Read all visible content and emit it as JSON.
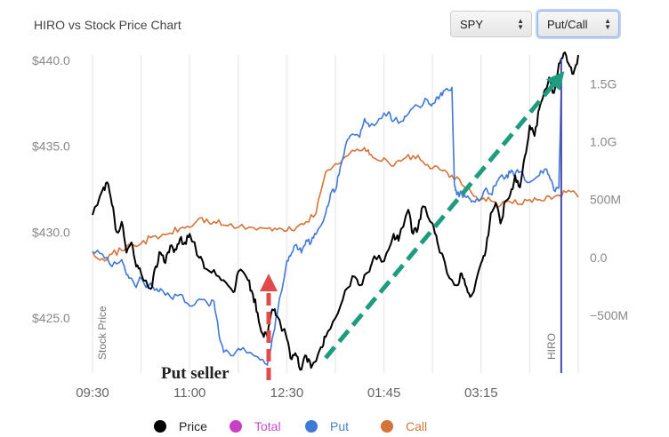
{
  "header": {
    "title": "HIRO vs Stock Price Chart",
    "ticker_value": "SPY",
    "mode_value": "Put/Call"
  },
  "legend": [
    {
      "label": "Price",
      "color": "#000000"
    },
    {
      "label": "Total",
      "color": "#c93fc4"
    },
    {
      "label": "Put",
      "color": "#3f79d6"
    },
    {
      "label": "Call",
      "color": "#d4743a"
    }
  ],
  "annotations": {
    "put_seller": "Put seller",
    "left_axis_title": "Stock Price",
    "right_axis_title": "HIRO"
  },
  "chart_data": {
    "type": "line",
    "x_ticks": [
      "09:30",
      "11:00",
      "12:30",
      "01:45",
      "03:15"
    ],
    "y_left_ticks": [
      "$440.0",
      "$435.0",
      "$430.0",
      "$425.0"
    ],
    "y_left_values": [
      440,
      435,
      430,
      425
    ],
    "y_left_range": [
      421.8,
      440.3
    ],
    "y_right_ticks": [
      "1.5G",
      "1.0G",
      "500M",
      "0.0",
      "−500M"
    ],
    "y_right_values": [
      1.5,
      1.0,
      0.5,
      0.0,
      -0.5
    ],
    "y_right_range": [
      -1.0,
      1.75
    ],
    "grid": "vertical",
    "series": [
      {
        "name": "Price",
        "axis": "left",
        "color": "#000000",
        "points": [
          [
            0,
            431.0
          ],
          [
            2,
            432.4
          ],
          [
            3,
            432.9
          ],
          [
            4,
            431.6
          ],
          [
            5,
            430.0
          ],
          [
            6,
            430.6
          ],
          [
            7,
            428.8
          ],
          [
            8,
            429.4
          ],
          [
            9,
            428.0
          ],
          [
            10,
            427.6
          ],
          [
            12,
            426.7
          ],
          [
            13,
            428.0
          ],
          [
            14,
            428.8
          ],
          [
            15,
            428.2
          ],
          [
            16,
            429.2
          ],
          [
            17,
            429.0
          ],
          [
            18,
            429.6
          ],
          [
            19,
            429.4
          ],
          [
            20,
            429.9
          ],
          [
            22,
            428.5
          ],
          [
            23,
            427.9
          ],
          [
            25,
            427.8
          ],
          [
            27,
            427.2
          ],
          [
            29,
            426.5
          ],
          [
            30,
            427.7
          ],
          [
            32,
            427.2
          ],
          [
            33,
            426.4
          ],
          [
            34,
            425.3
          ],
          [
            35,
            424.1
          ],
          [
            36,
            423.9
          ],
          [
            37,
            425.5
          ],
          [
            38,
            425.1
          ],
          [
            40,
            423.8
          ],
          [
            41,
            422.6
          ],
          [
            42,
            422.8
          ],
          [
            43,
            422.0
          ],
          [
            44,
            422.8
          ],
          [
            45,
            422.1
          ],
          [
            47,
            423.3
          ],
          [
            48,
            423.9
          ],
          [
            50,
            425.0
          ],
          [
            52,
            426.6
          ],
          [
            54,
            427.4
          ],
          [
            55,
            426.9
          ],
          [
            57,
            427.7
          ],
          [
            58,
            428.6
          ],
          [
            60,
            428.3
          ],
          [
            62,
            429.9
          ],
          [
            63,
            429.5
          ],
          [
            65,
            431.3
          ],
          [
            66,
            429.9
          ],
          [
            67,
            430.2
          ],
          [
            68,
            431.5
          ],
          [
            70,
            430.5
          ],
          [
            71,
            429.4
          ],
          [
            73,
            427.6
          ],
          [
            75,
            426.9
          ],
          [
            76,
            427.6
          ],
          [
            77,
            426.8
          ],
          [
            78,
            426.3
          ],
          [
            80,
            428.2
          ],
          [
            81,
            429.0
          ],
          [
            82,
            431.1
          ],
          [
            83,
            431.7
          ],
          [
            84,
            430.5
          ],
          [
            85,
            431.8
          ],
          [
            86,
            432.2
          ],
          [
            87,
            433.3
          ],
          [
            88,
            432.6
          ],
          [
            89,
            434.4
          ],
          [
            90,
            436.2
          ],
          [
            91,
            435.6
          ],
          [
            92,
            437.2
          ],
          [
            93,
            438.2
          ],
          [
            94,
            439.0
          ],
          [
            95,
            438.1
          ],
          [
            96,
            439.8
          ],
          [
            97,
            440.4
          ],
          [
            98,
            439.8
          ],
          [
            99,
            439.2
          ],
          [
            100,
            440.3
          ]
        ]
      },
      {
        "name": "Put",
        "axis": "right",
        "color": "#3f79d6",
        "points": [
          [
            0,
            0.05
          ],
          [
            2,
            0.03
          ],
          [
            4,
            -0.08
          ],
          [
            6,
            -0.02
          ],
          [
            7,
            -0.15
          ],
          [
            8,
            -0.18
          ],
          [
            9,
            -0.26
          ],
          [
            10,
            -0.18
          ],
          [
            11,
            -0.26
          ],
          [
            12,
            -0.22
          ],
          [
            13,
            -0.28
          ],
          [
            14,
            -0.27
          ],
          [
            16,
            -0.34
          ],
          [
            18,
            -0.32
          ],
          [
            20,
            -0.42
          ],
          [
            22,
            -0.36
          ],
          [
            24,
            -0.42
          ],
          [
            25,
            -0.38
          ],
          [
            26,
            -0.66
          ],
          [
            27,
            -0.82
          ],
          [
            29,
            -0.85
          ],
          [
            31,
            -0.78
          ],
          [
            34,
            -0.86
          ],
          [
            36,
            -0.93
          ],
          [
            37,
            -0.7
          ],
          [
            38,
            -0.5
          ],
          [
            40,
            -0.03
          ],
          [
            41,
            0.04
          ],
          [
            42,
            0.11
          ],
          [
            43,
            0.04
          ],
          [
            44,
            0.15
          ],
          [
            45,
            0.13
          ],
          [
            46,
            0.2
          ],
          [
            48,
            0.38
          ],
          [
            49,
            0.55
          ],
          [
            50,
            0.58
          ],
          [
            51,
            0.78
          ],
          [
            52,
            0.95
          ],
          [
            53,
            1.05
          ],
          [
            55,
            1.04
          ],
          [
            56,
            1.2
          ],
          [
            57,
            1.13
          ],
          [
            59,
            1.2
          ],
          [
            61,
            1.26
          ],
          [
            62,
            1.18
          ],
          [
            64,
            1.18
          ],
          [
            65,
            1.24
          ],
          [
            67,
            1.31
          ],
          [
            69,
            1.36
          ],
          [
            70,
            1.33
          ],
          [
            71,
            1.39
          ],
          [
            72,
            1.4
          ],
          [
            73,
            1.46
          ],
          [
            74,
            1.47
          ],
          [
            74.5,
            0.62
          ],
          [
            75,
            0.54
          ],
          [
            76,
            0.55
          ],
          [
            77,
            0.52
          ],
          [
            78,
            0.48
          ],
          [
            79,
            0.5
          ],
          [
            80,
            0.51
          ],
          [
            81,
            0.6
          ],
          [
            82,
            0.55
          ],
          [
            83,
            0.62
          ],
          [
            84,
            0.7
          ],
          [
            85,
            0.69
          ],
          [
            86,
            0.73
          ],
          [
            87,
            0.72
          ],
          [
            88,
            0.74
          ],
          [
            90,
            0.65
          ],
          [
            92,
            0.71
          ],
          [
            93,
            0.76
          ],
          [
            94,
            0.71
          ],
          [
            95,
            0.58
          ],
          [
            96,
            0.6
          ],
          [
            96.5,
            1.45
          ]
        ]
      },
      {
        "name": "Call",
        "axis": "right",
        "color": "#d4743a",
        "points": [
          [
            0,
            0.05
          ],
          [
            2,
            -0.01
          ],
          [
            4,
            0.03
          ],
          [
            6,
            0.06
          ],
          [
            8,
            0.11
          ],
          [
            10,
            0.12
          ],
          [
            12,
            0.17
          ],
          [
            14,
            0.18
          ],
          [
            16,
            0.21
          ],
          [
            18,
            0.25
          ],
          [
            20,
            0.26
          ],
          [
            22,
            0.34
          ],
          [
            24,
            0.3
          ],
          [
            25,
            0.31
          ],
          [
            27,
            0.28
          ],
          [
            30,
            0.26
          ],
          [
            33,
            0.26
          ],
          [
            36,
            0.25
          ],
          [
            38,
            0.24
          ],
          [
            40,
            0.23
          ],
          [
            42,
            0.26
          ],
          [
            44,
            0.31
          ],
          [
            46,
            0.38
          ],
          [
            48,
            0.74
          ],
          [
            50,
            0.81
          ],
          [
            52,
            0.87
          ],
          [
            54,
            0.92
          ],
          [
            56,
            0.95
          ],
          [
            57,
            0.89
          ],
          [
            58,
            0.86
          ],
          [
            60,
            0.86
          ],
          [
            62,
            0.79
          ],
          [
            64,
            0.85
          ],
          [
            66,
            0.88
          ],
          [
            68,
            0.83
          ],
          [
            70,
            0.77
          ],
          [
            72,
            0.75
          ],
          [
            74,
            0.71
          ],
          [
            76,
            0.63
          ],
          [
            78,
            0.56
          ],
          [
            80,
            0.5
          ],
          [
            82,
            0.49
          ],
          [
            84,
            0.45
          ],
          [
            86,
            0.48
          ],
          [
            88,
            0.46
          ],
          [
            90,
            0.5
          ],
          [
            92,
            0.5
          ],
          [
            94,
            0.53
          ],
          [
            96,
            0.54
          ],
          [
            98,
            0.58
          ],
          [
            100,
            0.52
          ]
        ]
      }
    ],
    "vertical_marker_x": 96.5
  }
}
